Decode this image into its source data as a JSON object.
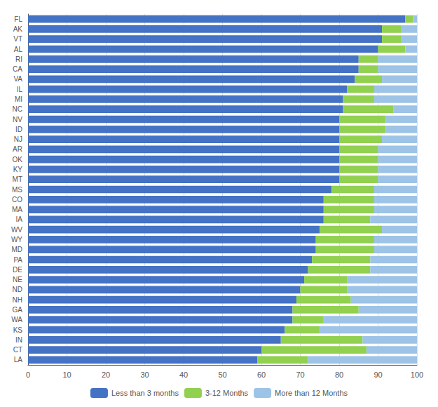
{
  "chart_data": {
    "type": "bar",
    "orientation": "horizontal",
    "stacked": true,
    "categories": [
      "FL",
      "AK",
      "VT",
      "AL",
      "RI",
      "CA",
      "VA",
      "IL",
      "MI",
      "NC",
      "NV",
      "ID",
      "NJ",
      "AR",
      "OK",
      "KY",
      "MT",
      "MS",
      "CO",
      "MA",
      "IA",
      "WV",
      "WY",
      "MD",
      "PA",
      "DE",
      "NE",
      "ND",
      "NH",
      "GA",
      "WA",
      "KS",
      "IN",
      "CT",
      "LA"
    ],
    "series": [
      {
        "name": "Less than 3 months",
        "color": "#4472C4",
        "values": [
          97,
          91,
          91,
          90,
          85,
          85,
          84,
          82,
          81,
          81,
          80,
          80,
          80,
          80,
          80,
          80,
          80,
          78,
          76,
          76,
          76,
          75,
          74,
          74,
          73,
          72,
          71,
          70,
          69,
          68,
          68,
          66,
          65,
          60,
          59
        ]
      },
      {
        "name": "3-12 Months",
        "color": "#92D050",
        "values": [
          2,
          5,
          5,
          7,
          5,
          5,
          7,
          7,
          8,
          13,
          12,
          12,
          11,
          10,
          10,
          10,
          10,
          11,
          13,
          13,
          12,
          16,
          15,
          15,
          15,
          16,
          11,
          12,
          14,
          17,
          8,
          9,
          21,
          27,
          13
        ]
      },
      {
        "name": "More than 12 Months",
        "color": "#9DC3E6",
        "values": [
          1,
          4,
          4,
          3,
          10,
          10,
          9,
          11,
          11,
          6,
          8,
          8,
          9,
          10,
          10,
          10,
          10,
          11,
          11,
          11,
          12,
          9,
          11,
          11,
          12,
          12,
          18,
          18,
          17,
          15,
          24,
          25,
          14,
          13,
          28
        ]
      }
    ],
    "xlim": [
      0,
      100
    ],
    "xticks": [
      0,
      10,
      20,
      30,
      40,
      50,
      60,
      70,
      80,
      90,
      100
    ],
    "grid": true,
    "legend": "bottom"
  }
}
